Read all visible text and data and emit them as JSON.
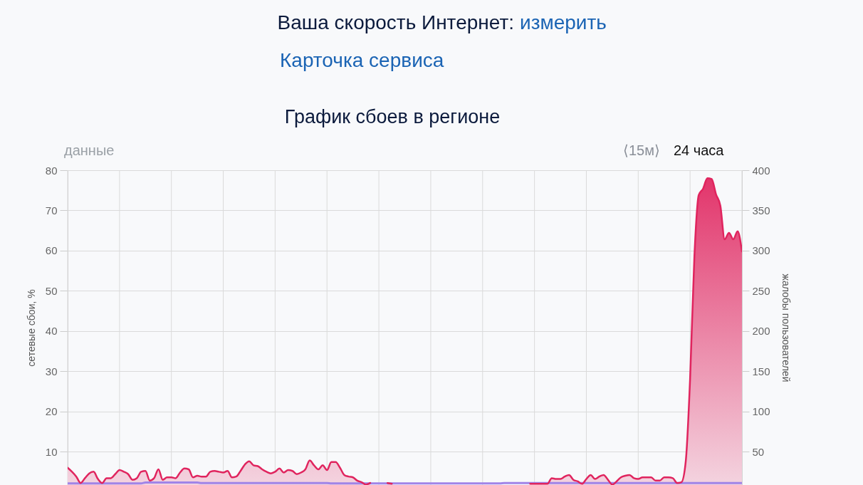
{
  "chart_data": {
    "type": "area",
    "title": "График сбоев в регионе",
    "ylabel": "сетевые сбои, %",
    "y2label": "жалобы пользователей",
    "annotations": [
      "Ваша скорость Интернет:",
      "измерить",
      "Карточка сервиса",
      "данные",
      "⟨15м⟩",
      "24 часа"
    ],
    "categories": [
      null,
      null,
      null,
      null,
      null,
      null,
      null,
      null,
      null,
      null,
      null,
      null,
      null,
      null,
      null,
      null,
      null,
      null,
      null,
      null,
      null,
      null,
      null,
      null,
      null,
      null,
      null,
      null,
      null,
      null,
      null,
      null,
      null,
      null,
      null,
      null,
      null,
      null,
      null,
      null,
      null,
      null,
      null,
      null,
      null,
      null,
      null,
      null,
      null,
      null,
      null,
      null,
      null,
      null,
      null,
      null,
      null,
      null,
      null,
      null,
      null,
      null,
      null,
      null,
      null,
      null,
      null,
      null,
      null,
      null,
      null,
      null,
      null,
      null,
      null,
      null,
      null,
      null,
      null,
      null,
      null,
      null,
      null,
      null,
      null,
      null,
      null,
      null,
      null,
      null,
      null,
      null,
      null,
      null,
      null,
      null,
      null,
      null,
      null,
      null,
      null,
      null,
      null,
      null,
      null,
      null,
      null,
      null,
      null,
      null,
      null,
      null,
      null,
      null,
      null,
      null,
      null,
      null,
      null,
      null,
      null,
      null,
      null,
      null,
      null,
      null,
      null,
      null,
      null,
      null,
      null,
      null,
      null,
      null,
      null,
      null,
      null,
      null,
      null,
      null,
      null,
      null,
      null,
      null,
      null,
      null,
      null,
      null,
      null,
      null,
      null,
      null,
      null,
      null,
      null,
      null,
      null
    ],
    "ylim": [
      1.7,
      80
    ],
    "yticks": [
      10,
      20,
      30,
      40,
      50,
      60,
      70,
      80
    ],
    "y2lim": [
      8.5,
      400
    ],
    "y2ticks": [
      50,
      100,
      150,
      200,
      250,
      300,
      350,
      400
    ],
    "grid": true,
    "series": [
      {
        "type": "line",
        "color": "#a084e8",
        "values": [
          2.1,
          2.1,
          2.1,
          2.1,
          2.1,
          2.1,
          2.1,
          2.1,
          2.1,
          2.1,
          2.1,
          2.1,
          2.1,
          2.1,
          2.1,
          2.1,
          2.1,
          2.1,
          2.3,
          2.3,
          2.3,
          2.3,
          2.3,
          2.3,
          2.3,
          2.3,
          2.3,
          2.3,
          2.3,
          2.3,
          2.3,
          2.2,
          2.2,
          2.2,
          2.2,
          2.2,
          2.2,
          2.2,
          2.2,
          2.2,
          2.2,
          2.2,
          2.2,
          2.2,
          2.2,
          2.2,
          2.2,
          2.2,
          2.2,
          2.2,
          2.2,
          2.2,
          2.2,
          2.2,
          2.2,
          2.2,
          2.2,
          2.2,
          2.2,
          2.2,
          2.2,
          2.1,
          2.1,
          2.1,
          2.1,
          2.1,
          2.1,
          2.1,
          2.1,
          2.1,
          2.1,
          2.1,
          2.1,
          2.1,
          2.1,
          2.1,
          2.1,
          2.1,
          2.1,
          2.1,
          2.1,
          2.1,
          2.1,
          2.1,
          2.1,
          2.1,
          2.1,
          2.1,
          2.1,
          2.1,
          2.1,
          2.1,
          2.1,
          2.1,
          2.1,
          2.1,
          2.1,
          2.1,
          2.1,
          2.1,
          2.1,
          2.2,
          2.2,
          2.2,
          2.2,
          2.2,
          2.2,
          2.2,
          2.2,
          2.2,
          2.2,
          2.2,
          2.2,
          2.2,
          2.2,
          2.2,
          2.2,
          2.2,
          2.2,
          2.2,
          2.2,
          2.2,
          2.2,
          2.2,
          2.2,
          2.2,
          2.2,
          2.2,
          2.2,
          2.2,
          2.2,
          2.2,
          2.2,
          2.2,
          2.2,
          2.2,
          2.2,
          2.2,
          2.2,
          2.2,
          2.2,
          2.2,
          2.2,
          2.2,
          2.2,
          2.2,
          2.2,
          2.2,
          2.2,
          2.2,
          2.2,
          2.2,
          2.2,
          2.2,
          2.2,
          2.2,
          2.2
        ]
      },
      {
        "color": "#e0245e",
        "axis": "y2",
        "values": [
          30,
          25,
          19,
          11,
          17,
          23,
          25,
          16,
          11,
          17,
          17,
          22,
          27,
          25,
          22,
          15,
          17,
          25,
          26,
          14,
          17,
          28,
          15,
          18,
          18,
          17,
          24,
          29,
          28,
          18,
          20,
          19,
          19,
          25,
          26,
          25,
          24,
          26,
          18,
          19,
          26,
          34,
          38,
          33,
          32,
          28,
          25,
          23,
          25,
          29,
          24,
          27,
          26,
          22,
          24,
          28,
          39,
          33,
          28,
          33,
          27,
          37,
          37,
          30,
          21,
          19,
          18,
          14,
          12,
          9,
          11,
          null,
          null,
          null,
          11,
          10,
          null,
          null,
          null,
          null,
          null,
          null,
          null,
          null,
          null,
          null,
          null,
          null,
          null,
          null,
          null,
          null,
          null,
          null,
          null,
          null,
          null,
          null,
          null,
          null,
          null,
          null,
          null,
          null,
          null,
          null,
          null,
          10,
          10,
          10,
          10,
          10,
          17,
          16,
          16,
          19,
          21,
          15,
          13,
          10,
          16,
          21,
          16,
          19,
          21,
          15,
          9,
          13,
          18,
          20,
          21,
          17,
          16,
          18,
          18,
          18,
          14,
          14,
          18,
          18,
          17,
          11,
          12,
          38,
          140,
          293,
          369,
          377,
          390,
          389,
          370,
          356,
          314,
          322,
          314,
          324,
          299
        ]
      }
    ]
  }
}
